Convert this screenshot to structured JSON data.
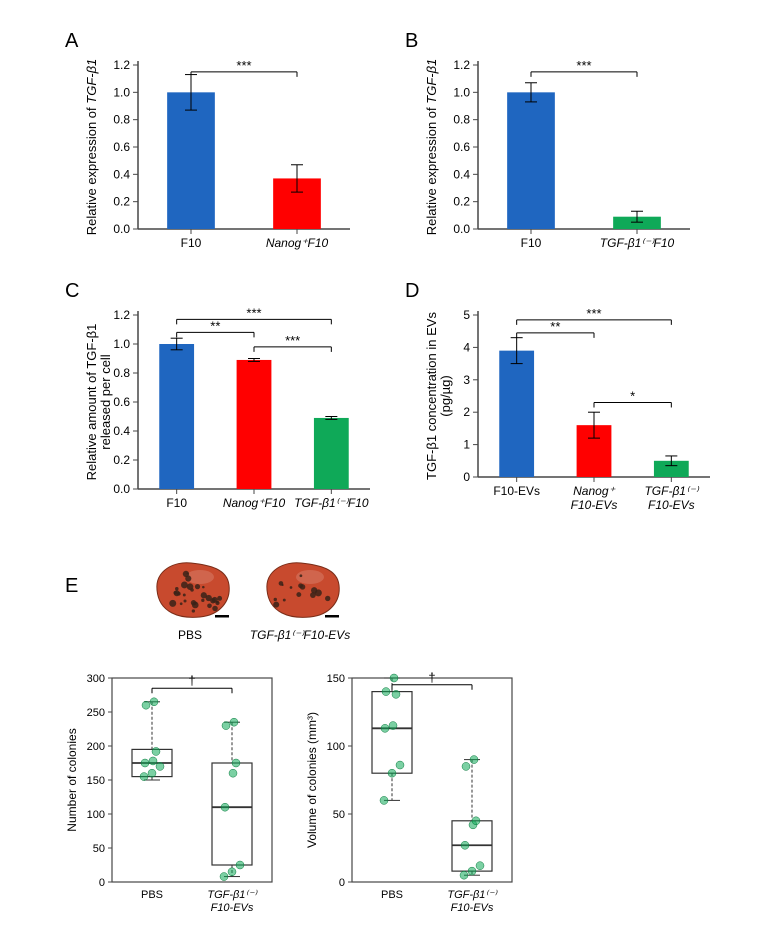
{
  "panelA": {
    "label": "A",
    "type": "bar",
    "ylabel_prefix": "Relative expression of ",
    "ylabel_gene": "TGF-β1",
    "categories": [
      "F10",
      "Nanog⁺F10"
    ],
    "category_italic": [
      false,
      true
    ],
    "values": [
      1.0,
      0.37
    ],
    "errs": [
      0.13,
      0.1
    ],
    "bar_colors": [
      "#1f66c0",
      "#ff0000"
    ],
    "ylim": [
      0.0,
      1.2
    ],
    "ytick_step": 0.2,
    "sig_bars": [
      {
        "from": 0,
        "to": 1,
        "label": "***",
        "y": 1.15
      }
    ],
    "axis_color": "#474747",
    "tick_fontsize": 12,
    "label_fontsize": 13,
    "bar_width": 0.45
  },
  "panelB": {
    "label": "B",
    "type": "bar",
    "ylabel_prefix": "Relative expression of ",
    "ylabel_gene": "TGF-β1",
    "categories": [
      "F10",
      "TGF-β1⁽⁻⁾F10"
    ],
    "category_italic": [
      false,
      true
    ],
    "values": [
      1.0,
      0.09
    ],
    "errs": [
      0.07,
      0.04
    ],
    "bar_colors": [
      "#1f66c0",
      "#0fa958"
    ],
    "ylim": [
      0.0,
      1.2
    ],
    "ytick_step": 0.2,
    "sig_bars": [
      {
        "from": 0,
        "to": 1,
        "label": "***",
        "y": 1.15
      }
    ],
    "axis_color": "#474747",
    "tick_fontsize": 12,
    "label_fontsize": 13,
    "bar_width": 0.45
  },
  "panelC": {
    "label": "C",
    "type": "bar",
    "ylabel_line1": "Relative amount of TGF-β1",
    "ylabel_line2": "released per cell",
    "categories": [
      "F10",
      "Nanog⁺F10",
      "TGF-β1⁽⁻⁾F10"
    ],
    "category_italic": [
      false,
      true,
      true
    ],
    "values": [
      1.0,
      0.89,
      0.49
    ],
    "errs": [
      0.04,
      0.01,
      0.01
    ],
    "bar_colors": [
      "#1f66c0",
      "#ff0000",
      "#0fa958"
    ],
    "ylim": [
      0.0,
      1.2
    ],
    "ytick_step": 0.2,
    "sig_bars": [
      {
        "from": 0,
        "to": 2,
        "label": "***",
        "y": 1.17
      },
      {
        "from": 0,
        "to": 1,
        "label": "**",
        "y": 1.08
      },
      {
        "from": 1,
        "to": 2,
        "label": "***",
        "y": 0.98
      }
    ],
    "axis_color": "#474747",
    "tick_fontsize": 12,
    "label_fontsize": 13,
    "bar_width": 0.45
  },
  "panelD": {
    "label": "D",
    "type": "bar",
    "ylabel_line1": "TGF-β1 concentration in EVs",
    "ylabel_line2": "(pg/µg)",
    "categories": [
      "F10-EVs",
      "Nanog⁺\nF10-EVs",
      "TGF-β1⁽⁻⁾\nF10-EVs"
    ],
    "category_italic": [
      false,
      true,
      true
    ],
    "values": [
      3.9,
      1.6,
      0.5
    ],
    "errs": [
      0.4,
      0.4,
      0.15
    ],
    "bar_colors": [
      "#1f66c0",
      "#ff0000",
      "#0fa958"
    ],
    "ylim": [
      0,
      5
    ],
    "ytick_step": 1,
    "sig_bars": [
      {
        "from": 0,
        "to": 2,
        "label": "***",
        "y": 4.85
      },
      {
        "from": 0,
        "to": 1,
        "label": "**",
        "y": 4.45
      },
      {
        "from": 1,
        "to": 2,
        "label": "*",
        "y": 2.3
      }
    ],
    "axis_color": "#474747",
    "tick_fontsize": 12,
    "label_fontsize": 13,
    "bar_width": 0.45
  },
  "panelE": {
    "label": "E",
    "lung_images": {
      "pbs": {
        "label": "PBS",
        "tissue_color": "#c84a2e",
        "colony_color": "#3a2218",
        "scale_bar_color": "#000000"
      },
      "kd": {
        "label": "TGF-β1⁽⁻⁾F10-EVs",
        "tissue_color": "#c84a2e",
        "colony_color": "#3a2218",
        "scale_bar_color": "#000000"
      }
    },
    "box_number": {
      "type": "boxplot",
      "ylabel": "Number of colonies",
      "categories": [
        "PBS",
        "TGF-β1⁽⁻⁾\nF10-EVs"
      ],
      "category_italic": [
        false,
        true
      ],
      "ylim": [
        0,
        300
      ],
      "ytick_step": 50,
      "boxes": [
        {
          "q1": 155,
          "median": 175,
          "q3": 195,
          "whisker_low": 150,
          "whisker_high": 265,
          "points": [
            155,
            160,
            170,
            175,
            178,
            192,
            260,
            265
          ]
        },
        {
          "q1": 25,
          "median": 110,
          "q3": 175,
          "whisker_low": 8,
          "whisker_high": 235,
          "points": [
            8,
            15,
            25,
            110,
            160,
            175,
            230,
            235
          ]
        }
      ],
      "sig_bars": [
        {
          "from": 0,
          "to": 1,
          "label": "†",
          "y": 285
        }
      ],
      "point_color": "#0fa958",
      "point_alpha": 0.55,
      "box_border": "#333333",
      "axis_color": "#474747",
      "tick_fontsize": 11,
      "label_fontsize": 12
    },
    "box_volume": {
      "type": "boxplot",
      "ylabel": "Volume of colonies (mm³)",
      "categories": [
        "PBS",
        "TGF-β1⁽⁻⁾\nF10-EVs"
      ],
      "category_italic": [
        false,
        true
      ],
      "ylim": [
        0,
        150
      ],
      "ytick_step": 50,
      "boxes": [
        {
          "q1": 80,
          "median": 113,
          "q3": 140,
          "whisker_low": 60,
          "whisker_high": 150,
          "points": [
            60,
            80,
            86,
            113,
            115,
            138,
            140,
            150
          ]
        },
        {
          "q1": 8,
          "median": 27,
          "q3": 45,
          "whisker_low": 5,
          "whisker_high": 90,
          "points": [
            5,
            8,
            12,
            27,
            42,
            45,
            85,
            90
          ]
        }
      ],
      "sig_bars": [
        {
          "from": 0,
          "to": 1,
          "label": "†",
          "y": 145
        }
      ],
      "point_color": "#0fa958",
      "point_alpha": 0.55,
      "box_border": "#333333",
      "axis_color": "#474747",
      "tick_fontsize": 11,
      "label_fontsize": 12
    }
  }
}
